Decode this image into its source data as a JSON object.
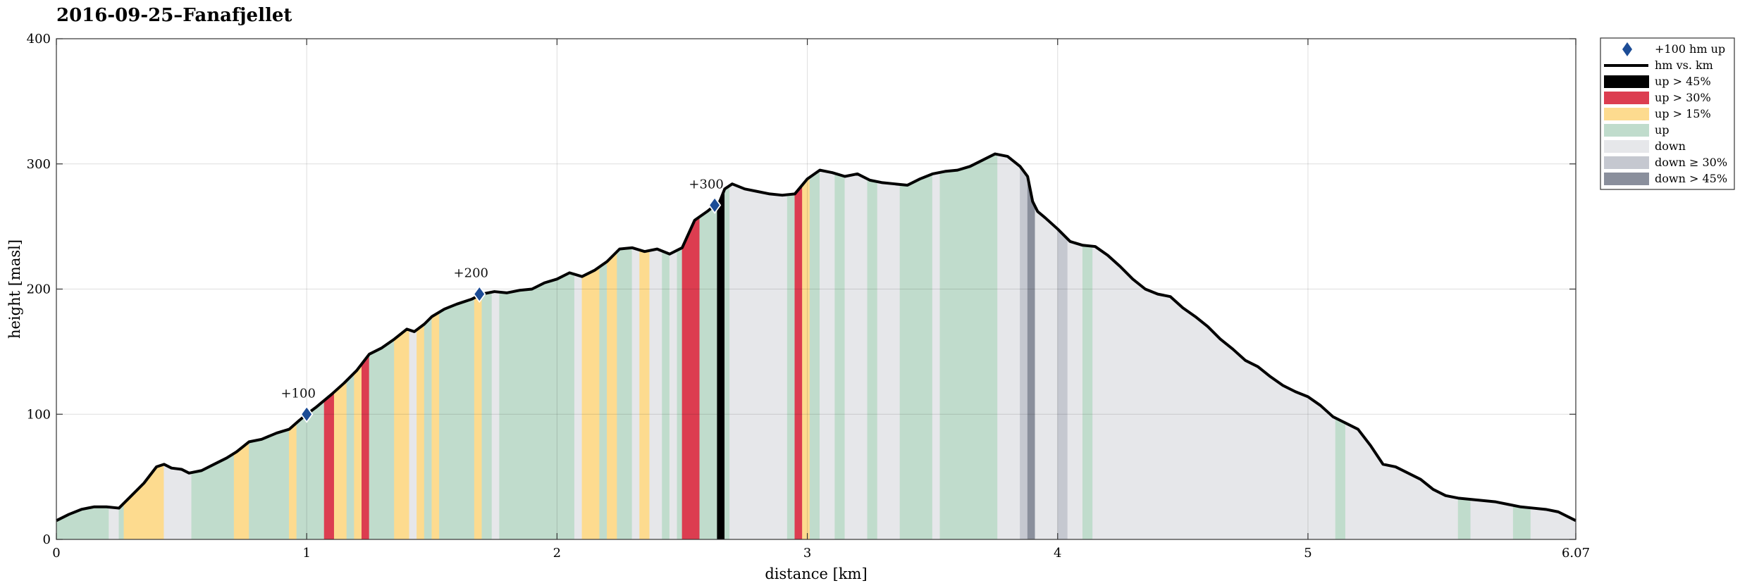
{
  "chart_data": {
    "type": "area",
    "title": "2016-09-25–Fanafjellet",
    "xlabel": "distance [km]",
    "ylabel": "height [masl]",
    "xlim": [
      0,
      6.07
    ],
    "ylim": [
      0,
      400
    ],
    "xticks": [
      {
        "value": 0,
        "label": "0"
      },
      {
        "value": 1,
        "label": "1"
      },
      {
        "value": 2,
        "label": "2"
      },
      {
        "value": 3,
        "label": "3"
      },
      {
        "value": 4,
        "label": "4"
      },
      {
        "value": 5,
        "label": "5"
      },
      {
        "value": 6.07,
        "label": "6.07"
      }
    ],
    "yticks": [
      {
        "value": 0,
        "label": "0"
      },
      {
        "value": 100,
        "label": "100"
      },
      {
        "value": 200,
        "label": "200"
      },
      {
        "value": 300,
        "label": "300"
      },
      {
        "value": 400,
        "label": "400"
      }
    ],
    "grid": true,
    "legend_position": "outside-top-right",
    "colors": {
      "up45": "#000000",
      "up30": "#dc3d50",
      "up15": "#fddb8f",
      "up": "#c0dccc",
      "down": "#e6e7ea",
      "down30": "#c5c8d0",
      "down45": "#8a8f9c",
      "line": "#000000",
      "marker": "#1c4c96"
    },
    "legend": [
      {
        "key": "marker",
        "label": "+100 hm up"
      },
      {
        "key": "line",
        "label": "hm vs. km"
      },
      {
        "key": "up45",
        "label": "up > 45%"
      },
      {
        "key": "up30",
        "label": "up > 30%"
      },
      {
        "key": "up15",
        "label": "up > 15%"
      },
      {
        "key": "up",
        "label": "up"
      },
      {
        "key": "down",
        "label": "down"
      },
      {
        "key": "down30",
        "label": "down ≥ 30%"
      },
      {
        "key": "down45",
        "label": "down > 45%"
      }
    ],
    "profile": {
      "x": [
        0,
        0.05,
        0.1,
        0.15,
        0.2,
        0.25,
        0.3,
        0.35,
        0.4,
        0.43,
        0.46,
        0.5,
        0.53,
        0.58,
        0.63,
        0.68,
        0.72,
        0.77,
        0.82,
        0.88,
        0.93,
        0.97,
        1.0,
        1.04,
        1.1,
        1.15,
        1.2,
        1.25,
        1.3,
        1.35,
        1.4,
        1.43,
        1.47,
        1.5,
        1.55,
        1.6,
        1.66,
        1.7,
        1.75,
        1.8,
        1.85,
        1.9,
        1.95,
        2.0,
        2.05,
        2.1,
        2.15,
        2.2,
        2.25,
        2.3,
        2.35,
        2.4,
        2.45,
        2.5,
        2.55,
        2.6,
        2.65,
        2.67,
        2.7,
        2.75,
        2.8,
        2.85,
        2.9,
        2.95,
        3.0,
        3.05,
        3.1,
        3.15,
        3.2,
        3.25,
        3.3,
        3.35,
        3.4,
        3.45,
        3.5,
        3.55,
        3.6,
        3.65,
        3.7,
        3.75,
        3.8,
        3.85,
        3.88,
        3.9,
        3.92,
        3.95,
        4.0,
        4.05,
        4.1,
        4.15,
        4.2,
        4.25,
        4.3,
        4.35,
        4.4,
        4.45,
        4.5,
        4.55,
        4.6,
        4.65,
        4.7,
        4.75,
        4.8,
        4.85,
        4.9,
        4.95,
        5.0,
        5.05,
        5.1,
        5.15,
        5.2,
        5.25,
        5.3,
        5.35,
        5.4,
        5.45,
        5.5,
        5.55,
        5.6,
        5.65,
        5.7,
        5.75,
        5.8,
        5.85,
        5.9,
        5.95,
        6.0,
        6.07
      ],
      "y": [
        15,
        20,
        24,
        26,
        26,
        25,
        35,
        45,
        58,
        60,
        57,
        56,
        53,
        55,
        60,
        65,
        70,
        78,
        80,
        85,
        88,
        95,
        100,
        106,
        116,
        125,
        135,
        148,
        153,
        160,
        168,
        166,
        172,
        178,
        184,
        188,
        192,
        196,
        198,
        197,
        199,
        200,
        205,
        208,
        213,
        210,
        215,
        222,
        232,
        233,
        230,
        232,
        228,
        233,
        255,
        262,
        270,
        280,
        284,
        280,
        278,
        276,
        275,
        276,
        288,
        295,
        293,
        290,
        292,
        287,
        285,
        284,
        283,
        288,
        292,
        294,
        295,
        298,
        303,
        308,
        306,
        298,
        290,
        270,
        262,
        257,
        248,
        238,
        235,
        234,
        227,
        218,
        208,
        200,
        196,
        194,
        185,
        178,
        170,
        160,
        152,
        143,
        138,
        130,
        123,
        118,
        114,
        107,
        98,
        93,
        88,
        75,
        60,
        58,
        53,
        48,
        40,
        35,
        33,
        32,
        31,
        30,
        28,
        26,
        25,
        24,
        22,
        15
      ]
    },
    "segments": [
      {
        "from": 0,
        "to": 0.21,
        "cat": "up"
      },
      {
        "from": 0.21,
        "to": 0.25,
        "cat": "down"
      },
      {
        "from": 0.25,
        "to": 0.27,
        "cat": "up"
      },
      {
        "from": 0.27,
        "to": 0.43,
        "cat": "up15"
      },
      {
        "from": 0.43,
        "to": 0.54,
        "cat": "down"
      },
      {
        "from": 0.54,
        "to": 0.71,
        "cat": "up"
      },
      {
        "from": 0.71,
        "to": 0.77,
        "cat": "up15"
      },
      {
        "from": 0.77,
        "to": 0.93,
        "cat": "up"
      },
      {
        "from": 0.93,
        "to": 0.96,
        "cat": "up15"
      },
      {
        "from": 0.96,
        "to": 1.07,
        "cat": "up"
      },
      {
        "from": 1.07,
        "to": 1.11,
        "cat": "up30"
      },
      {
        "from": 1.11,
        "to": 1.16,
        "cat": "up15"
      },
      {
        "from": 1.16,
        "to": 1.19,
        "cat": "up"
      },
      {
        "from": 1.19,
        "to": 1.22,
        "cat": "up15"
      },
      {
        "from": 1.22,
        "to": 1.25,
        "cat": "up30"
      },
      {
        "from": 1.25,
        "to": 1.35,
        "cat": "up"
      },
      {
        "from": 1.35,
        "to": 1.41,
        "cat": "up15"
      },
      {
        "from": 1.41,
        "to": 1.44,
        "cat": "down"
      },
      {
        "from": 1.44,
        "to": 1.47,
        "cat": "up15"
      },
      {
        "from": 1.47,
        "to": 1.5,
        "cat": "up"
      },
      {
        "from": 1.5,
        "to": 1.53,
        "cat": "up15"
      },
      {
        "from": 1.53,
        "to": 1.67,
        "cat": "up"
      },
      {
        "from": 1.67,
        "to": 1.7,
        "cat": "up15"
      },
      {
        "from": 1.7,
        "to": 1.74,
        "cat": "up"
      },
      {
        "from": 1.74,
        "to": 1.77,
        "cat": "down"
      },
      {
        "from": 1.77,
        "to": 2.07,
        "cat": "up"
      },
      {
        "from": 2.07,
        "to": 2.1,
        "cat": "down"
      },
      {
        "from": 2.1,
        "to": 2.17,
        "cat": "up15"
      },
      {
        "from": 2.17,
        "to": 2.2,
        "cat": "up"
      },
      {
        "from": 2.2,
        "to": 2.24,
        "cat": "up15"
      },
      {
        "from": 2.24,
        "to": 2.3,
        "cat": "up"
      },
      {
        "from": 2.3,
        "to": 2.33,
        "cat": "down"
      },
      {
        "from": 2.33,
        "to": 2.37,
        "cat": "up15"
      },
      {
        "from": 2.37,
        "to": 2.42,
        "cat": "down"
      },
      {
        "from": 2.42,
        "to": 2.45,
        "cat": "up"
      },
      {
        "from": 2.45,
        "to": 2.48,
        "cat": "down"
      },
      {
        "from": 2.48,
        "to": 2.5,
        "cat": "up"
      },
      {
        "from": 2.5,
        "to": 2.57,
        "cat": "up30"
      },
      {
        "from": 2.57,
        "to": 2.64,
        "cat": "up"
      },
      {
        "from": 2.64,
        "to": 2.67,
        "cat": "up45"
      },
      {
        "from": 2.67,
        "to": 2.69,
        "cat": "up"
      },
      {
        "from": 2.69,
        "to": 2.92,
        "cat": "down"
      },
      {
        "from": 2.92,
        "to": 2.95,
        "cat": "up"
      },
      {
        "from": 2.95,
        "to": 2.98,
        "cat": "up30"
      },
      {
        "from": 2.98,
        "to": 3.01,
        "cat": "up15"
      },
      {
        "from": 3.01,
        "to": 3.05,
        "cat": "up"
      },
      {
        "from": 3.05,
        "to": 3.11,
        "cat": "down"
      },
      {
        "from": 3.11,
        "to": 3.15,
        "cat": "up"
      },
      {
        "from": 3.15,
        "to": 3.24,
        "cat": "down"
      },
      {
        "from": 3.24,
        "to": 3.28,
        "cat": "up"
      },
      {
        "from": 3.28,
        "to": 3.37,
        "cat": "down"
      },
      {
        "from": 3.37,
        "to": 3.5,
        "cat": "up"
      },
      {
        "from": 3.5,
        "to": 3.53,
        "cat": "down"
      },
      {
        "from": 3.53,
        "to": 3.76,
        "cat": "up"
      },
      {
        "from": 3.76,
        "to": 3.85,
        "cat": "down"
      },
      {
        "from": 3.85,
        "to": 3.88,
        "cat": "down30"
      },
      {
        "from": 3.88,
        "to": 3.91,
        "cat": "down45"
      },
      {
        "from": 3.91,
        "to": 4.0,
        "cat": "down"
      },
      {
        "from": 4.0,
        "to": 4.04,
        "cat": "down30"
      },
      {
        "from": 4.04,
        "to": 4.1,
        "cat": "down"
      },
      {
        "from": 4.1,
        "to": 4.14,
        "cat": "up"
      },
      {
        "from": 4.14,
        "to": 5.11,
        "cat": "down"
      },
      {
        "from": 5.11,
        "to": 5.15,
        "cat": "up"
      },
      {
        "from": 5.15,
        "to": 5.6,
        "cat": "down"
      },
      {
        "from": 5.6,
        "to": 5.65,
        "cat": "up"
      },
      {
        "from": 5.65,
        "to": 5.82,
        "cat": "down"
      },
      {
        "from": 5.82,
        "to": 5.89,
        "cat": "up"
      },
      {
        "from": 5.89,
        "to": 6.07,
        "cat": "down"
      }
    ],
    "markers": [
      {
        "x": 1.0,
        "y": 100,
        "label": "+100"
      },
      {
        "x": 1.69,
        "y": 196,
        "label": "+200"
      },
      {
        "x": 2.63,
        "y": 267,
        "label": "+300"
      }
    ]
  }
}
